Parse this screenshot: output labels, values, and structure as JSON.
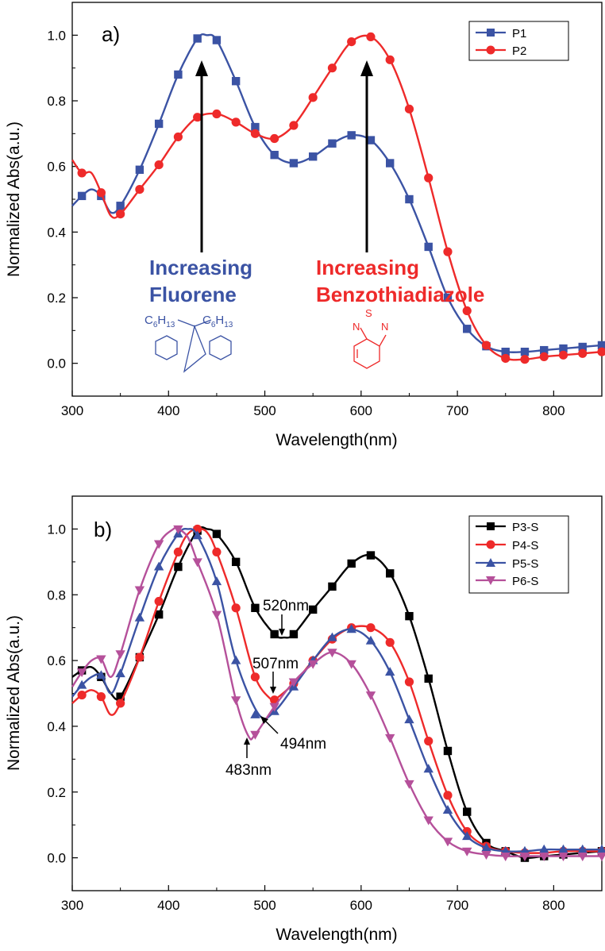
{
  "chart_data": [
    {
      "type": "line",
      "panel_label": "a)",
      "xlabel": "Wavelength(nm)",
      "ylabel": "Normalized Abs(a.u.)",
      "xlim": [
        300,
        850
      ],
      "ylim": [
        -0.1,
        1.1
      ],
      "xticks": [
        "300",
        "400",
        "500",
        "600",
        "700",
        "800"
      ],
      "yticks": [
        "0.0",
        "0.2",
        "0.4",
        "0.6",
        "0.8",
        "1.0"
      ],
      "legend_position": "top-right",
      "series": [
        {
          "name": "P1",
          "color": "#3b53a4",
          "marker": "square",
          "x": [
            300,
            310,
            320,
            330,
            340,
            350,
            370,
            390,
            410,
            430,
            440,
            450,
            470,
            490,
            510,
            530,
            550,
            570,
            590,
            610,
            630,
            650,
            670,
            690,
            710,
            730,
            750,
            770,
            790,
            810,
            830,
            850
          ],
          "y": [
            0.48,
            0.51,
            0.53,
            0.51,
            0.46,
            0.48,
            0.59,
            0.73,
            0.88,
            0.99,
            1.0,
            0.985,
            0.86,
            0.72,
            0.635,
            0.61,
            0.63,
            0.67,
            0.695,
            0.68,
            0.61,
            0.5,
            0.355,
            0.2,
            0.105,
            0.052,
            0.035,
            0.035,
            0.04,
            0.045,
            0.05,
            0.055
          ],
          "marker_x": [
            310,
            330,
            350,
            370,
            390,
            410,
            430,
            450,
            470,
            490,
            510,
            530,
            550,
            570,
            590,
            610,
            630,
            650,
            670,
            690,
            710,
            730,
            750,
            770,
            790,
            810,
            830,
            850
          ],
          "marker_y": [
            0.51,
            0.51,
            0.48,
            0.59,
            0.73,
            0.88,
            0.99,
            0.985,
            0.86,
            0.72,
            0.635,
            0.61,
            0.63,
            0.67,
            0.695,
            0.68,
            0.61,
            0.5,
            0.355,
            0.2,
            0.105,
            0.052,
            0.035,
            0.035,
            0.04,
            0.045,
            0.05,
            0.055
          ]
        },
        {
          "name": "P2",
          "color": "#ee2a2a",
          "marker": "circle",
          "x": [
            300,
            310,
            320,
            330,
            340,
            350,
            370,
            390,
            410,
            430,
            450,
            470,
            490,
            510,
            530,
            550,
            570,
            590,
            610,
            630,
            650,
            670,
            690,
            710,
            730,
            750,
            770,
            790,
            810,
            830,
            850
          ],
          "y": [
            0.62,
            0.58,
            0.58,
            0.52,
            0.45,
            0.455,
            0.53,
            0.605,
            0.69,
            0.75,
            0.76,
            0.735,
            0.7,
            0.685,
            0.725,
            0.81,
            0.9,
            0.98,
            0.995,
            0.925,
            0.775,
            0.565,
            0.34,
            0.16,
            0.055,
            0.015,
            0.012,
            0.02,
            0.025,
            0.03,
            0.035
          ],
          "marker_x": [
            310,
            330,
            350,
            370,
            390,
            410,
            430,
            450,
            470,
            490,
            510,
            530,
            550,
            570,
            590,
            610,
            630,
            650,
            670,
            690,
            710,
            730,
            750,
            770,
            790,
            810,
            830,
            850
          ],
          "marker_y": [
            0.58,
            0.52,
            0.455,
            0.53,
            0.605,
            0.69,
            0.75,
            0.76,
            0.735,
            0.7,
            0.685,
            0.725,
            0.81,
            0.9,
            0.98,
            0.995,
            0.925,
            0.775,
            0.565,
            0.34,
            0.16,
            0.055,
            0.015,
            0.012,
            0.02,
            0.025,
            0.03,
            0.035
          ]
        }
      ],
      "annotations": [
        {
          "text_lines": [
            "Increasing",
            "Fluorene"
          ],
          "color": "#3b53a4",
          "arrow_x": 437,
          "arrow_from_y": 0.4,
          "arrow_to_y": 0.93
        },
        {
          "text_lines": [
            "Increasing",
            "Benzothiadiazole"
          ],
          "color": "#ee2a2a",
          "arrow_x": 610,
          "arrow_from_y": 0.4,
          "arrow_to_y": 0.93
        }
      ],
      "structures": {
        "fluorene": {
          "substituent_left": "C6H13",
          "substituent_right": "C6H13",
          "color": "#3b53a4"
        },
        "benzothiadiazole": {
          "atoms": [
            "N",
            "S",
            "N"
          ],
          "color": "#ee2a2a"
        }
      }
    },
    {
      "type": "line",
      "panel_label": "b)",
      "xlabel": "Wavelength(nm)",
      "ylabel": "Normalized Abs(a.u.)",
      "xlim": [
        300,
        850
      ],
      "ylim": [
        -0.1,
        1.1
      ],
      "xticks": [
        "300",
        "400",
        "500",
        "600",
        "700",
        "800"
      ],
      "yticks": [
        "0.0",
        "0.2",
        "0.4",
        "0.6",
        "0.8",
        "1.0"
      ],
      "legend_position": "top-right",
      "series": [
        {
          "name": "P3-S",
          "color": "#000000",
          "marker": "square",
          "x": [
            300,
            310,
            320,
            330,
            340,
            350,
            370,
            390,
            410,
            430,
            440,
            450,
            470,
            490,
            510,
            520,
            530,
            550,
            570,
            590,
            610,
            630,
            650,
            670,
            690,
            710,
            730,
            750,
            770,
            790,
            810,
            830,
            850
          ],
          "y": [
            0.55,
            0.57,
            0.58,
            0.55,
            0.5,
            0.49,
            0.61,
            0.74,
            0.885,
            0.995,
            1.0,
            0.985,
            0.9,
            0.76,
            0.68,
            0.67,
            0.68,
            0.755,
            0.825,
            0.895,
            0.92,
            0.865,
            0.735,
            0.545,
            0.325,
            0.14,
            0.045,
            0.02,
            0.0,
            0.005,
            0.01,
            0.015,
            0.02
          ],
          "marker_x": [
            310,
            330,
            350,
            370,
            390,
            410,
            430,
            450,
            470,
            490,
            510,
            530,
            550,
            570,
            590,
            610,
            630,
            650,
            670,
            690,
            710,
            730,
            750,
            770,
            790,
            810,
            830,
            850
          ],
          "marker_y": [
            0.57,
            0.55,
            0.49,
            0.61,
            0.74,
            0.885,
            0.995,
            0.985,
            0.9,
            0.76,
            0.68,
            0.68,
            0.755,
            0.825,
            0.895,
            0.92,
            0.865,
            0.735,
            0.545,
            0.325,
            0.14,
            0.045,
            0.02,
            0.0,
            0.005,
            0.01,
            0.015,
            0.02
          ]
        },
        {
          "name": "P4-S",
          "color": "#ee2a2a",
          "marker": "circle",
          "x": [
            300,
            310,
            320,
            330,
            340,
            350,
            370,
            390,
            410,
            420,
            430,
            440,
            450,
            470,
            490,
            507,
            510,
            530,
            550,
            570,
            590,
            610,
            630,
            650,
            670,
            690,
            710,
            730,
            750,
            770,
            790,
            810,
            830,
            850
          ],
          "y": [
            0.47,
            0.495,
            0.51,
            0.49,
            0.435,
            0.47,
            0.61,
            0.78,
            0.93,
            0.985,
            1.0,
            0.99,
            0.93,
            0.76,
            0.55,
            0.48,
            0.48,
            0.53,
            0.6,
            0.665,
            0.7,
            0.7,
            0.655,
            0.535,
            0.355,
            0.19,
            0.08,
            0.035,
            0.02,
            0.015,
            0.015,
            0.02,
            0.02,
            0.02
          ],
          "marker_x": [
            310,
            330,
            350,
            370,
            390,
            410,
            430,
            450,
            470,
            490,
            510,
            530,
            550,
            570,
            590,
            610,
            630,
            650,
            670,
            690,
            710,
            730,
            750,
            770,
            790,
            810,
            830,
            850
          ],
          "marker_y": [
            0.495,
            0.49,
            0.47,
            0.61,
            0.78,
            0.93,
            1.0,
            0.93,
            0.76,
            0.55,
            0.48,
            0.53,
            0.6,
            0.665,
            0.7,
            0.7,
            0.655,
            0.535,
            0.355,
            0.19,
            0.08,
            0.035,
            0.02,
            0.015,
            0.015,
            0.02,
            0.02,
            0.02
          ]
        },
        {
          "name": "P5-S",
          "color": "#3b53a4",
          "marker": "triangle-up",
          "x": [
            300,
            310,
            320,
            330,
            340,
            350,
            370,
            390,
            410,
            420,
            430,
            450,
            470,
            494,
            510,
            530,
            550,
            570,
            590,
            610,
            630,
            650,
            670,
            690,
            710,
            730,
            750,
            770,
            790,
            810,
            830,
            850
          ],
          "y": [
            0.49,
            0.525,
            0.55,
            0.555,
            0.5,
            0.56,
            0.73,
            0.885,
            0.985,
            1.0,
            0.98,
            0.84,
            0.6,
            0.435,
            0.445,
            0.52,
            0.6,
            0.67,
            0.695,
            0.66,
            0.565,
            0.42,
            0.27,
            0.145,
            0.065,
            0.03,
            0.02,
            0.02,
            0.025,
            0.025,
            0.025,
            0.025
          ],
          "marker_x": [
            310,
            330,
            350,
            370,
            390,
            410,
            430,
            450,
            470,
            490,
            510,
            530,
            550,
            570,
            590,
            610,
            630,
            650,
            670,
            690,
            710,
            730,
            750,
            770,
            790,
            810,
            830,
            850
          ],
          "marker_y": [
            0.525,
            0.555,
            0.56,
            0.73,
            0.885,
            0.985,
            0.98,
            0.84,
            0.6,
            0.435,
            0.445,
            0.52,
            0.6,
            0.67,
            0.695,
            0.66,
            0.565,
            0.42,
            0.27,
            0.145,
            0.065,
            0.03,
            0.02,
            0.02,
            0.025,
            0.025,
            0.025,
            0.025
          ]
        },
        {
          "name": "P6-S",
          "color": "#b5509a",
          "marker": "triangle-down",
          "x": [
            300,
            310,
            320,
            330,
            340,
            350,
            370,
            390,
            405,
            410,
            420,
            430,
            450,
            470,
            483,
            490,
            510,
            530,
            550,
            570,
            590,
            610,
            630,
            650,
            670,
            690,
            710,
            730,
            750,
            770,
            790,
            810,
            830,
            850
          ],
          "y": [
            0.52,
            0.565,
            0.6,
            0.605,
            0.55,
            0.62,
            0.815,
            0.955,
            1.0,
            1.0,
            0.975,
            0.9,
            0.74,
            0.48,
            0.37,
            0.375,
            0.46,
            0.535,
            0.59,
            0.625,
            0.59,
            0.495,
            0.365,
            0.225,
            0.115,
            0.05,
            0.02,
            0.01,
            0.005,
            0.005,
            0.005,
            0.005,
            0.005,
            0.005
          ],
          "marker_x": [
            310,
            330,
            350,
            370,
            390,
            410,
            430,
            450,
            470,
            490,
            510,
            530,
            550,
            570,
            590,
            610,
            630,
            650,
            670,
            690,
            710,
            730,
            750,
            770,
            790,
            810,
            830,
            850
          ],
          "marker_y": [
            0.565,
            0.605,
            0.62,
            0.815,
            0.955,
            1.0,
            0.9,
            0.74,
            0.48,
            0.375,
            0.46,
            0.535,
            0.59,
            0.625,
            0.59,
            0.495,
            0.365,
            0.225,
            0.115,
            0.05,
            0.02,
            0.01,
            0.005,
            0.005,
            0.005,
            0.005,
            0.005,
            0.005
          ]
        }
      ],
      "annotations": [
        {
          "text": "520nm",
          "x": 520,
          "y": 0.67
        },
        {
          "text": "507nm",
          "x": 507,
          "y": 0.48
        },
        {
          "text": "494nm",
          "x": 494,
          "y": 0.435
        },
        {
          "text": "483nm",
          "x": 483,
          "y": 0.37
        }
      ]
    }
  ]
}
